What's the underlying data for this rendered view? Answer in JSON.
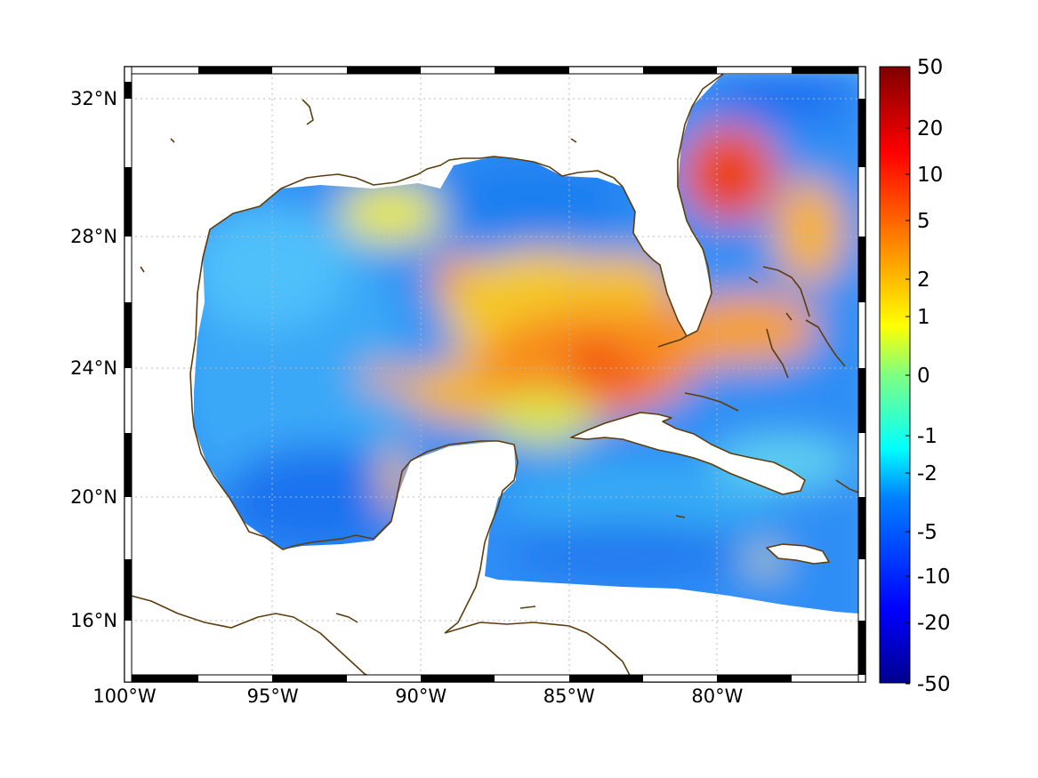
{
  "map": {
    "x_range_deg": [
      -100,
      -75
    ],
    "y_range_deg": [
      14.2,
      33
    ],
    "lon_ticks": [
      {
        "value": -100,
        "label": "100°W"
      },
      {
        "value": -95,
        "label": "95°W"
      },
      {
        "value": -90,
        "label": "90°W"
      },
      {
        "value": -85,
        "label": "85°W"
      },
      {
        "value": -80,
        "label": "80°W"
      }
    ],
    "lat_ticks": [
      {
        "value": 32,
        "label": "32°N"
      },
      {
        "value": 28,
        "label": "28°N"
      },
      {
        "value": 24,
        "label": "24°N"
      },
      {
        "value": 20,
        "label": "20°N"
      },
      {
        "value": 16,
        "label": "16°N"
      }
    ],
    "grid": true,
    "frame": "black-white checkered border",
    "coastline_color": "#5c3d0e",
    "land_color": "#ffffff"
  },
  "colorbar": {
    "colormap": "jet",
    "tick_labels": [
      "50",
      "20",
      "10",
      "5",
      "2",
      "1",
      "0",
      "-1",
      "-2",
      "-5",
      "-10",
      "-20",
      "-50"
    ],
    "range": [
      -50,
      50
    ],
    "position": "right"
  },
  "chart_data": {
    "type": "heatmap",
    "region": "Gulf of Mexico and Caribbean",
    "color_min": -50,
    "color_max": 50,
    "features": [
      {
        "lon": -83.5,
        "lat": 24.2,
        "value": 8
      },
      {
        "lon": -85.5,
        "lat": 24.0,
        "value": 5
      },
      {
        "lon": -82.0,
        "lat": 24.8,
        "value": 6
      },
      {
        "lon": -79.8,
        "lat": 29.8,
        "value": 12
      },
      {
        "lon": -88.5,
        "lat": 26.5,
        "value": 6
      },
      {
        "lon": -87.5,
        "lat": 25.5,
        "value": 2
      },
      {
        "lon": -88.5,
        "lat": 29.0,
        "value": -6
      },
      {
        "lon": -94.5,
        "lat": 24.0,
        "value": -6
      },
      {
        "lon": -93.0,
        "lat": 20.0,
        "value": -10
      },
      {
        "lon": -82.0,
        "lat": 18.5,
        "value": -6
      },
      {
        "lon": -78.0,
        "lat": 32.0,
        "value": -10
      }
    ]
  }
}
